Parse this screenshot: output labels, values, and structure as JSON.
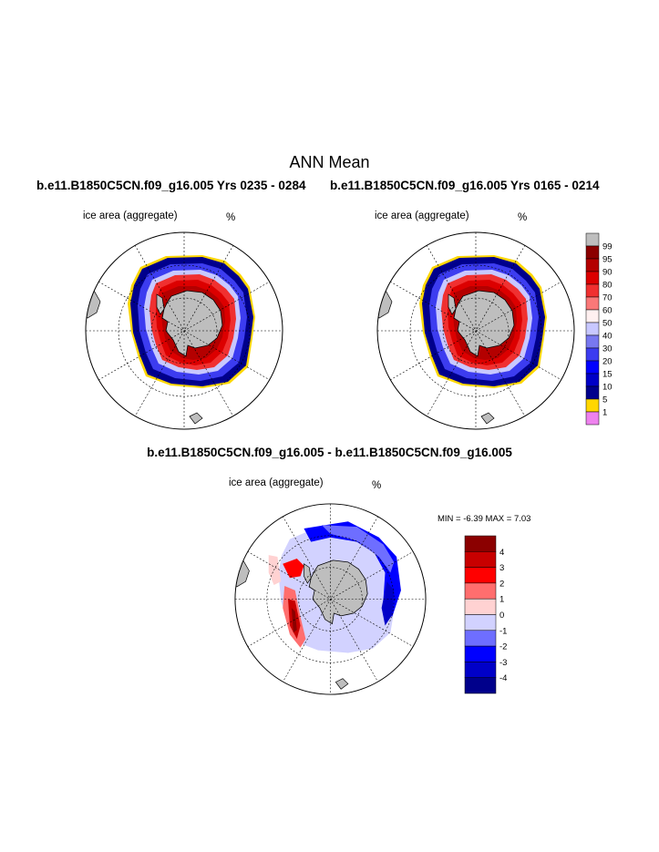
{
  "title": "ANN Mean",
  "case_left": "b.e11.B1850C5CN.f09_g16.005  Yrs 0235 - 0284",
  "case_right": "b.e11.B1850C5CN.f09_g16.005  Yrs 0165 - 0214",
  "diff_title": "b.e11.B1850C5CN.f09_g16.005 - b.e11.B1850C5CN.f09_g16.005",
  "panels": {
    "left": {
      "var": "ice area  (aggregate)",
      "unit": "%"
    },
    "right": {
      "var": "ice area  (aggregate)",
      "unit": "%"
    },
    "diff": {
      "var": "ice area  (aggregate)",
      "unit": "%"
    }
  },
  "minmax": "MIN =  -6.39 MAX =   7.03",
  "colorbar_abs": {
    "labels": [
      "99",
      "95",
      "90",
      "80",
      "70",
      "60",
      "50",
      "40",
      "30",
      "20",
      "15",
      "10",
      "5",
      "1"
    ],
    "colors": [
      "#bebebe",
      "#8b0000",
      "#b40000",
      "#dc0000",
      "#f03030",
      "#fa7878",
      "#fff0f0",
      "#c8c8ff",
      "#7878f0",
      "#3c3cf0",
      "#0000ff",
      "#0000c8",
      "#00008c",
      "#ffd700",
      "#ee82ee"
    ]
  },
  "colorbar_diff": {
    "labels": [
      "4",
      "3",
      "2",
      "1",
      "0",
      "-1",
      "-2",
      "-3",
      "-4"
    ],
    "colors": [
      "#8b0000",
      "#c80000",
      "#ff0000",
      "#ff6e6e",
      "#ffd2d2",
      "#d2d2ff",
      "#6e6eff",
      "#0000ff",
      "#0000c8",
      "#00008b"
    ]
  }
}
